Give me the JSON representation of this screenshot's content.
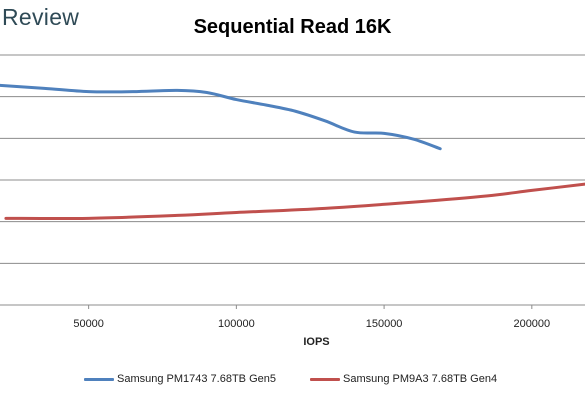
{
  "brand": "Review",
  "chart_data": {
    "type": "line",
    "title": "Sequential Read 16K",
    "xlabel": "IOPS",
    "ylabel": "",
    "xlim": [
      20000,
      218000
    ],
    "ylim": [
      0,
      6
    ],
    "grid": true,
    "legend_position": "bottom",
    "x_ticks": [
      50000,
      100000,
      150000,
      200000
    ],
    "x_tick_labels": [
      "50000",
      "100000",
      "150000",
      "200000"
    ],
    "series": [
      {
        "name": "Samsung PM1743 7.68TB Gen5",
        "color": "#4f81bd",
        "x": [
          20000,
          35000,
          50000,
          65000,
          80000,
          90000,
          100000,
          110000,
          120000,
          130000,
          140000,
          150000,
          160000,
          169000
        ],
        "y": [
          5.27,
          5.2,
          5.12,
          5.12,
          5.15,
          5.1,
          4.93,
          4.8,
          4.65,
          4.42,
          4.15,
          4.12,
          3.98,
          3.75
        ]
      },
      {
        "name": "Samsung PM9A3 7.68TB Gen4",
        "color": "#c0504d",
        "x": [
          22000,
          50000,
          80000,
          100000,
          130000,
          160000,
          185000,
          200000,
          218000
        ],
        "y": [
          2.08,
          2.08,
          2.15,
          2.22,
          2.32,
          2.47,
          2.62,
          2.75,
          2.9
        ]
      }
    ]
  }
}
